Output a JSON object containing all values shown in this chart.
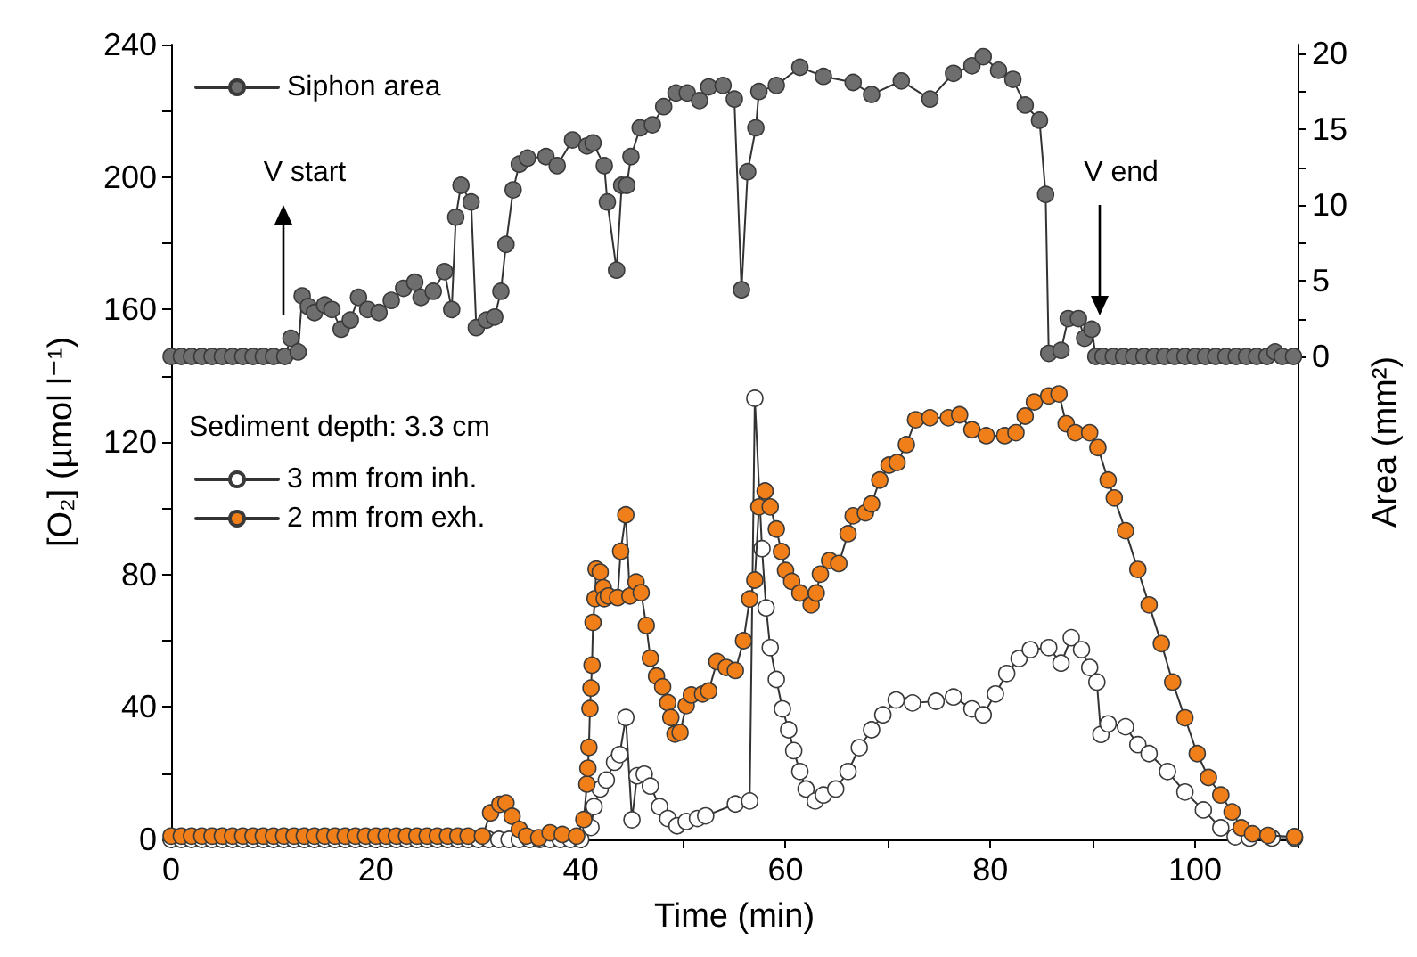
{
  "chart_data": {
    "type": "line",
    "xlabel": "Time (min)",
    "ylabel": "[O₂] (µmol l⁻¹)",
    "y2label": "Area (mm²)",
    "legend_title": "Sediment depth: 3.3 cm",
    "xlim": [
      0,
      110
    ],
    "xticks": [
      0,
      {
        "value": 10,
        "label": null
      },
      20,
      {
        "value": 30,
        "label": null
      },
      40,
      {
        "value": 50,
        "label": null
      },
      60,
      {
        "value": 70,
        "label": null
      },
      80,
      {
        "value": 90,
        "label": null
      },
      100,
      {
        "value": 110,
        "label": null
      }
    ],
    "ylim": [
      0,
      240
    ],
    "yticks": [
      0,
      {
        "value": 20,
        "label": null
      },
      40,
      {
        "value": 60,
        "label": null
      },
      80,
      {
        "value": 100,
        "label": null
      },
      120,
      {
        "value": 140,
        "label": null
      },
      160,
      {
        "value": 180,
        "label": null
      },
      200,
      {
        "value": 220,
        "label": null
      },
      240
    ],
    "y2lim": [
      -31.9,
      20.6
    ],
    "y2ticks": [
      0,
      {
        "value": 2.5,
        "label": null
      },
      5,
      {
        "value": 7.5,
        "label": null
      },
      10,
      {
        "value": 12.5,
        "label": null
      },
      15,
      {
        "value": 17.5,
        "label": null
      },
      20
    ],
    "marker": "circle",
    "line_style": "solid",
    "grid": false,
    "legend": "top left",
    "annotations": [
      "V start",
      "V end"
    ],
    "series": [
      {
        "name": "Siphon area",
        "color": "#6e6e6e",
        "axis": "y2",
        "x": [
          0,
          1,
          2,
          3,
          4,
          5,
          6,
          7,
          8,
          9,
          10,
          11.1,
          11.7,
          12.4,
          12.8,
          13.4,
          14.0,
          15.0,
          15.7,
          16.6,
          17.5,
          18.3,
          19.2,
          20.3,
          21.5,
          22.7,
          23.8,
          24.4,
          25.6,
          26.7,
          27.4,
          27.8,
          28.3,
          29.3,
          29.8,
          30.8,
          31.6,
          32.2,
          32.7,
          33.4,
          34.0,
          34.8,
          36.6,
          37.7,
          39.2,
          40.6,
          41.2,
          42.3,
          42.6,
          43.5,
          44.0,
          44.5,
          44.9,
          45.8,
          47.0,
          48.1,
          49.3,
          50.4,
          51.6,
          52.5,
          53.9,
          55.0,
          55.7,
          56.3,
          57.1,
          57.4,
          59.1,
          61.4,
          63.7,
          66.6,
          68.4,
          71.3,
          74.1,
          76.4,
          78.2,
          79.3,
          80.8,
          82.2,
          83.4,
          84.8,
          85.4,
          85.7,
          86.9,
          87.6,
          88.6,
          89.2,
          89.9,
          90.3,
          91,
          92,
          93,
          94,
          95,
          96,
          97,
          98,
          99,
          100,
          101,
          102,
          103,
          104,
          105,
          106,
          107,
          107.8,
          108.5,
          109.6
        ],
        "values": [
          0,
          0,
          0,
          0,
          0,
          0,
          0,
          0,
          0,
          0,
          0,
          0,
          1.2,
          0.3,
          4.0,
          3.3,
          2.9,
          3.4,
          3.1,
          1.8,
          2.4,
          3.9,
          3.1,
          2.9,
          3.7,
          4.5,
          4.9,
          3.9,
          4.3,
          5.6,
          3.1,
          9.2,
          11.3,
          10.2,
          1.9,
          2.4,
          2.6,
          4.3,
          7.4,
          11.0,
          12.7,
          13.1,
          13.2,
          12.6,
          14.3,
          13.9,
          14.1,
          12.6,
          10.2,
          5.7,
          11.3,
          11.3,
          13.2,
          15.1,
          15.3,
          16.5,
          17.4,
          17.4,
          16.9,
          17.8,
          17.9,
          17.0,
          4.4,
          12.2,
          15.1,
          17.5,
          17.9,
          19.1,
          18.5,
          18.1,
          17.3,
          18.2,
          17.0,
          18.7,
          19.2,
          19.8,
          18.9,
          18.3,
          16.6,
          15.6,
          10.7,
          0.2,
          0.4,
          2.5,
          2.5,
          1.2,
          1.8,
          0,
          0,
          0,
          0,
          0,
          0,
          0,
          0,
          0,
          0,
          0,
          0,
          0,
          0,
          0,
          0,
          0,
          0,
          0.3,
          0,
          0
        ]
      },
      {
        "name": "3 mm from inh.",
        "color": "#ffffff",
        "x": [
          0,
          1,
          2,
          3,
          4,
          5,
          6,
          7,
          8,
          9,
          10,
          11,
          12,
          13,
          14,
          15,
          16,
          17,
          18,
          19,
          20,
          21,
          22,
          23,
          24,
          25,
          26,
          27,
          28,
          29,
          30,
          31,
          32,
          33,
          34,
          35,
          36,
          37,
          38,
          39,
          40,
          41.0,
          41.3,
          41.9,
          42.5,
          43.3,
          43.8,
          44.4,
          45.0,
          45.5,
          46.2,
          46.8,
          47.7,
          48.5,
          49.4,
          50.3,
          51.4,
          52.2,
          55.1,
          56.5,
          57.0,
          57.7,
          58.1,
          58.5,
          59.1,
          59.7,
          60.3,
          60.8,
          61.4,
          62.0,
          62.9,
          63.7,
          64.9,
          66.1,
          67.2,
          68.4,
          69.5,
          70.8,
          72.4,
          74.7,
          76.4,
          78.2,
          79.3,
          80.5,
          81.6,
          82.8,
          83.9,
          85.7,
          86.9,
          87.9,
          88.9,
          89.7,
          90.4,
          90.8,
          91.5,
          93.2,
          94.4,
          95.5,
          97.3,
          99.0,
          100.8,
          102.5,
          103.9,
          105.3,
          107.5,
          109.7
        ],
        "values": [
          0,
          0,
          0,
          0,
          0,
          0,
          0,
          0,
          0,
          0,
          0,
          0,
          0,
          0,
          0,
          0,
          0,
          0,
          0,
          0,
          0,
          0,
          0,
          0,
          0,
          0,
          0,
          0,
          0,
          0,
          0,
          0,
          0,
          0,
          0,
          0,
          0,
          0,
          0,
          0,
          0,
          3.6,
          9.9,
          15.2,
          17.9,
          23.3,
          25.6,
          36.8,
          5.9,
          19.2,
          19.7,
          16.1,
          9.9,
          6.3,
          4.1,
          5.4,
          6.3,
          7.1,
          10.7,
          11.6,
          133.2,
          87.8,
          69.9,
          57.9,
          48.3,
          39.4,
          33.1,
          26.8,
          20.5,
          15.2,
          11.6,
          13.4,
          15.2,
          20.5,
          27.7,
          33.1,
          37.6,
          42.1,
          41.2,
          41.7,
          43.0,
          39.4,
          37.6,
          43.9,
          50.1,
          54.6,
          57.3,
          57.9,
          53.2,
          60.9,
          57.3,
          51.9,
          47.5,
          31.7,
          34.9,
          34.0,
          28.6,
          25.9,
          20.5,
          14.3,
          8.9,
          3.5,
          0.8,
          0.4,
          0.4,
          0.4
        ]
      },
      {
        "name": "2 mm from exh.",
        "color": "#f07f1a",
        "x": [
          0,
          1,
          2,
          3,
          4,
          5,
          6,
          7,
          8,
          9,
          10,
          11,
          12,
          13,
          14,
          15,
          16,
          17,
          18,
          19,
          20,
          21,
          22,
          23,
          24,
          25,
          26,
          27,
          28,
          29,
          30.4,
          31.2,
          32.1,
          32.7,
          33.3,
          34.0,
          34.7,
          35.9,
          37.0,
          38.2,
          39.6,
          40.3,
          40.6,
          40.7,
          40.8,
          40.9,
          41.0,
          41.1,
          41.2,
          41.4,
          41.5,
          41.9,
          42.2,
          42.3,
          42.7,
          43.6,
          43.9,
          44.4,
          44.8,
          45.4,
          45.9,
          46.4,
          46.8,
          47.4,
          48.0,
          48.5,
          48.8,
          49.2,
          49.7,
          50.3,
          50.8,
          51.9,
          52.5,
          53.3,
          54.2,
          55.1,
          55.9,
          56.5,
          57.0,
          57.4,
          58.0,
          58.5,
          59.1,
          59.6,
          60.0,
          60.6,
          61.4,
          62.5,
          63.0,
          63.4,
          64.3,
          65.2,
          66.1,
          66.6,
          67.8,
          68.4,
          69.2,
          70.1,
          70.9,
          71.8,
          72.7,
          74.1,
          75.9,
          77.0,
          78.2,
          79.6,
          81.4,
          82.5,
          83.4,
          84.3,
          85.7,
          86.7,
          87.4,
          88.3,
          89.7,
          90.5,
          91.5,
          92.1,
          93.2,
          94.4,
          95.5,
          96.7,
          97.8,
          99.0,
          100.2,
          101.3,
          102.5,
          103.6,
          104.5,
          105.6,
          107.1,
          109.7
        ],
        "values": [
          1,
          1,
          1,
          1,
          1,
          1,
          1,
          1,
          1,
          1,
          1,
          1,
          1,
          1,
          1,
          1,
          1,
          1,
          1,
          1,
          1,
          1,
          1,
          1,
          1,
          1,
          1,
          1,
          1,
          1,
          1,
          8,
          10.6,
          11,
          7,
          3,
          1,
          0.5,
          2,
          1.5,
          1,
          6,
          16.7,
          21.5,
          27.8,
          39.5,
          45.7,
          52.6,
          65.5,
          72.7,
          81.6,
          80.7,
          76,
          72.7,
          73.5,
          73,
          87,
          98,
          73.5,
          77.7,
          74.5,
          64.6,
          54.7,
          49.3,
          46.1,
          41.3,
          36.8,
          31.8,
          32.3,
          40.4,
          43.6,
          43.9,
          44.8,
          53.7,
          51.9,
          51,
          60,
          72.6,
          78.3,
          100.4,
          105.2,
          100.4,
          93.7,
          86.9,
          81.2,
          77.9,
          74.4,
          70.8,
          74.4,
          80.1,
          84.2,
          83.3,
          92.3,
          97.7,
          98.6,
          101.3,
          108.5,
          113,
          113.8,
          119.2,
          126.7,
          127.3,
          127.3,
          128.2,
          123.7,
          121.9,
          121.9,
          122.8,
          127.8,
          132.1,
          133.9,
          134.5,
          125.5,
          122.8,
          122.8,
          118.3,
          108.5,
          103.1,
          93.2,
          81.5,
          70.8,
          59.1,
          47.5,
          36.7,
          25.9,
          18.7,
          13.4,
          8.3,
          3.5,
          1.7,
          1.2,
          0.8
        ]
      }
    ]
  }
}
